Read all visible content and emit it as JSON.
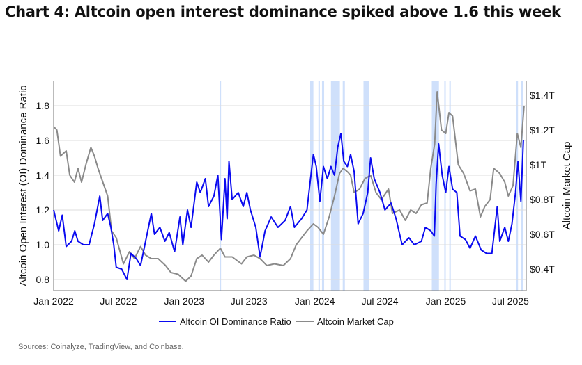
{
  "title": "Chart 4: Altcoin open interest dominance spiked above 1.6 this week",
  "source": "Sources: Coinalyze, TradingView, and Coinbase.",
  "chart_data": {
    "type": "line",
    "ylabel": "Altcoin Open Interest (OI) Dominance Ratio",
    "y2label": "Altcoin Market Cap",
    "ylim": [
      0.736,
      1.944
    ],
    "y2lim": [
      0.276,
      1.484
    ],
    "xlim": [
      "2022-01-01",
      "2025-08-14"
    ],
    "grid": true,
    "legend_position": "bottom",
    "x_ticks": [
      {
        "date": "2022-01-01",
        "label": "Jan 2022"
      },
      {
        "date": "2022-07-01",
        "label": "Jul 2022"
      },
      {
        "date": "2023-01-01",
        "label": "Jan 2023"
      },
      {
        "date": "2023-07-01",
        "label": "Jul 2023"
      },
      {
        "date": "2024-01-01",
        "label": "Jan 2024"
      },
      {
        "date": "2024-07-01",
        "label": "Jul 2024"
      },
      {
        "date": "2025-01-01",
        "label": "Jan 2025"
      },
      {
        "date": "2025-07-01",
        "label": "Jul 2025"
      }
    ],
    "y_ticks": [
      {
        "v": 0.8,
        "label": "0.8"
      },
      {
        "v": 1.0,
        "label": "1.0"
      },
      {
        "v": 1.2,
        "label": "1.2"
      },
      {
        "v": 1.4,
        "label": "1.4"
      },
      {
        "v": 1.6,
        "label": "1.6"
      },
      {
        "v": 1.8,
        "label": "1.8"
      }
    ],
    "y2_ticks": [
      {
        "v": 0.4,
        "label": "$0.4T"
      },
      {
        "v": 0.6,
        "label": "$0.6T"
      },
      {
        "v": 0.8,
        "label": "$0.8T"
      },
      {
        "v": 1.0,
        "label": "$1T"
      },
      {
        "v": 1.2,
        "label": "$1.2T"
      },
      {
        "v": 1.4,
        "label": "$1.4T"
      }
    ],
    "highlight_periods": [
      [
        "2023-04-11",
        "2023-04-13"
      ],
      [
        "2023-12-19",
        "2023-12-28"
      ],
      [
        "2024-01-11",
        "2024-01-15"
      ],
      [
        "2024-01-21",
        "2024-01-27"
      ],
      [
        "2024-02-15",
        "2024-03-11"
      ],
      [
        "2024-03-19",
        "2024-03-25"
      ],
      [
        "2024-05-16",
        "2024-06-01"
      ],
      [
        "2024-11-23",
        "2024-12-13"
      ],
      [
        "2024-12-28",
        "2025-01-01"
      ],
      [
        "2025-01-11",
        "2025-01-15"
      ],
      [
        "2025-07-16",
        "2025-07-22"
      ],
      [
        "2025-07-30",
        "2025-08-06"
      ]
    ],
    "highlight_color": "#cfe0fb",
    "series": [
      {
        "name": "Altcoin OI Dominance Ratio",
        "axis": "left",
        "color": "#0a0af0",
        "points": [
          [
            "2022-01-01",
            1.2
          ],
          [
            "2022-01-15",
            1.08
          ],
          [
            "2022-01-25",
            1.17
          ],
          [
            "2022-02-05",
            0.99
          ],
          [
            "2022-02-20",
            1.02
          ],
          [
            "2022-03-01",
            1.08
          ],
          [
            "2022-03-10",
            1.02
          ],
          [
            "2022-03-25",
            1.0
          ],
          [
            "2022-04-10",
            1.0
          ],
          [
            "2022-04-25",
            1.12
          ],
          [
            "2022-05-10",
            1.28
          ],
          [
            "2022-05-18",
            1.14
          ],
          [
            "2022-06-01",
            1.18
          ],
          [
            "2022-06-10",
            1.1
          ],
          [
            "2022-06-18",
            1.0
          ],
          [
            "2022-06-25",
            0.87
          ],
          [
            "2022-07-10",
            0.86
          ],
          [
            "2022-07-25",
            0.8
          ],
          [
            "2022-08-05",
            0.95
          ],
          [
            "2022-08-20",
            0.92
          ],
          [
            "2022-09-01",
            0.88
          ],
          [
            "2022-09-15",
            1.02
          ],
          [
            "2022-10-01",
            1.18
          ],
          [
            "2022-10-10",
            1.06
          ],
          [
            "2022-10-25",
            1.1
          ],
          [
            "2022-11-08",
            1.02
          ],
          [
            "2022-11-20",
            1.07
          ],
          [
            "2022-12-05",
            0.96
          ],
          [
            "2022-12-20",
            1.16
          ],
          [
            "2022-12-28",
            1.0
          ],
          [
            "2023-01-10",
            1.2
          ],
          [
            "2023-01-20",
            1.1
          ],
          [
            "2023-02-05",
            1.36
          ],
          [
            "2023-02-15",
            1.3
          ],
          [
            "2023-03-01",
            1.38
          ],
          [
            "2023-03-10",
            1.22
          ],
          [
            "2023-03-25",
            1.28
          ],
          [
            "2023-04-05",
            1.4
          ],
          [
            "2023-04-15",
            1.03
          ],
          [
            "2023-04-25",
            1.38
          ],
          [
            "2023-05-01",
            1.15
          ],
          [
            "2023-05-06",
            1.48
          ],
          [
            "2023-05-15",
            1.26
          ],
          [
            "2023-06-01",
            1.3
          ],
          [
            "2023-06-15",
            1.22
          ],
          [
            "2023-06-25",
            1.3
          ],
          [
            "2023-07-05",
            1.2
          ],
          [
            "2023-07-20",
            1.1
          ],
          [
            "2023-08-01",
            0.93
          ],
          [
            "2023-08-15",
            1.08
          ],
          [
            "2023-09-01",
            1.16
          ],
          [
            "2023-09-20",
            1.1
          ],
          [
            "2023-10-10",
            1.14
          ],
          [
            "2023-10-25",
            1.22
          ],
          [
            "2023-11-05",
            1.1
          ],
          [
            "2023-11-25",
            1.15
          ],
          [
            "2023-12-10",
            1.2
          ],
          [
            "2023-12-20",
            1.38
          ],
          [
            "2023-12-28",
            1.52
          ],
          [
            "2024-01-05",
            1.45
          ],
          [
            "2024-01-15",
            1.25
          ],
          [
            "2024-01-25",
            1.45
          ],
          [
            "2024-02-05",
            1.38
          ],
          [
            "2024-02-15",
            1.45
          ],
          [
            "2024-02-25",
            1.4
          ],
          [
            "2024-03-05",
            1.56
          ],
          [
            "2024-03-14",
            1.64
          ],
          [
            "2024-03-22",
            1.48
          ],
          [
            "2024-04-01",
            1.45
          ],
          [
            "2024-04-10",
            1.52
          ],
          [
            "2024-04-20",
            1.42
          ],
          [
            "2024-05-01",
            1.12
          ],
          [
            "2024-05-15",
            1.18
          ],
          [
            "2024-05-28",
            1.3
          ],
          [
            "2024-06-05",
            1.5
          ],
          [
            "2024-06-15",
            1.38
          ],
          [
            "2024-07-01",
            1.3
          ],
          [
            "2024-07-15",
            1.2
          ],
          [
            "2024-08-01",
            1.24
          ],
          [
            "2024-08-15",
            1.15
          ],
          [
            "2024-09-01",
            1.0
          ],
          [
            "2024-09-20",
            1.04
          ],
          [
            "2024-10-05",
            1.0
          ],
          [
            "2024-10-25",
            1.02
          ],
          [
            "2024-11-05",
            1.1
          ],
          [
            "2024-11-20",
            1.08
          ],
          [
            "2024-11-30",
            1.05
          ],
          [
            "2024-12-05",
            1.35
          ],
          [
            "2024-12-12",
            1.58
          ],
          [
            "2024-12-22",
            1.4
          ],
          [
            "2025-01-01",
            1.3
          ],
          [
            "2025-01-10",
            1.45
          ],
          [
            "2025-01-20",
            1.32
          ],
          [
            "2025-02-01",
            1.3
          ],
          [
            "2025-02-10",
            1.05
          ],
          [
            "2025-02-25",
            1.03
          ],
          [
            "2025-03-10",
            0.98
          ],
          [
            "2025-03-25",
            1.05
          ],
          [
            "2025-04-10",
            0.97
          ],
          [
            "2025-04-25",
            0.95
          ],
          [
            "2025-05-10",
            0.95
          ],
          [
            "2025-05-25",
            1.22
          ],
          [
            "2025-06-01",
            1.02
          ],
          [
            "2025-06-15",
            1.1
          ],
          [
            "2025-06-25",
            1.02
          ],
          [
            "2025-07-05",
            1.12
          ],
          [
            "2025-07-15",
            1.3
          ],
          [
            "2025-07-22",
            1.48
          ],
          [
            "2025-07-30",
            1.25
          ],
          [
            "2025-08-06",
            1.6
          ]
        ]
      },
      {
        "name": "Altcoin Market Cap",
        "axis": "right",
        "color": "#8a8a8a",
        "points": [
          [
            "2022-01-01",
            1.22
          ],
          [
            "2022-01-10",
            1.2
          ],
          [
            "2022-01-20",
            1.05
          ],
          [
            "2022-02-05",
            1.08
          ],
          [
            "2022-02-15",
            0.94
          ],
          [
            "2022-02-28",
            0.9
          ],
          [
            "2022-03-10",
            0.98
          ],
          [
            "2022-03-20",
            0.9
          ],
          [
            "2022-04-01",
            1.0
          ],
          [
            "2022-04-15",
            1.1
          ],
          [
            "2022-04-25",
            1.05
          ],
          [
            "2022-05-05",
            0.98
          ],
          [
            "2022-05-15",
            0.92
          ],
          [
            "2022-06-01",
            0.82
          ],
          [
            "2022-06-12",
            0.62
          ],
          [
            "2022-06-25",
            0.58
          ],
          [
            "2022-07-15",
            0.43
          ],
          [
            "2022-08-01",
            0.5
          ],
          [
            "2022-08-15",
            0.46
          ],
          [
            "2022-09-01",
            0.53
          ],
          [
            "2022-09-15",
            0.48
          ],
          [
            "2022-10-01",
            0.46
          ],
          [
            "2022-10-20",
            0.46
          ],
          [
            "2022-11-10",
            0.42
          ],
          [
            "2022-11-25",
            0.38
          ],
          [
            "2022-12-15",
            0.37
          ],
          [
            "2023-01-05",
            0.33
          ],
          [
            "2023-01-20",
            0.36
          ],
          [
            "2023-02-05",
            0.46
          ],
          [
            "2023-02-20",
            0.48
          ],
          [
            "2023-03-10",
            0.44
          ],
          [
            "2023-03-25",
            0.48
          ],
          [
            "2023-04-12",
            0.52
          ],
          [
            "2023-04-25",
            0.47
          ],
          [
            "2023-05-15",
            0.47
          ],
          [
            "2023-06-10",
            0.43
          ],
          [
            "2023-06-25",
            0.47
          ],
          [
            "2023-07-15",
            0.48
          ],
          [
            "2023-08-01",
            0.46
          ],
          [
            "2023-08-20",
            0.42
          ],
          [
            "2023-09-10",
            0.43
          ],
          [
            "2023-10-05",
            0.42
          ],
          [
            "2023-10-25",
            0.46
          ],
          [
            "2023-11-10",
            0.54
          ],
          [
            "2023-11-25",
            0.58
          ],
          [
            "2023-12-10",
            0.62
          ],
          [
            "2023-12-28",
            0.66
          ],
          [
            "2024-01-10",
            0.64
          ],
          [
            "2024-01-25",
            0.6
          ],
          [
            "2024-02-10",
            0.7
          ],
          [
            "2024-02-25",
            0.82
          ],
          [
            "2024-03-10",
            0.95
          ],
          [
            "2024-03-20",
            0.98
          ],
          [
            "2024-04-01",
            0.96
          ],
          [
            "2024-04-10",
            0.94
          ],
          [
            "2024-04-20",
            0.84
          ],
          [
            "2024-05-05",
            0.86
          ],
          [
            "2024-05-20",
            0.92
          ],
          [
            "2024-06-05",
            0.94
          ],
          [
            "2024-06-20",
            0.84
          ],
          [
            "2024-07-05",
            0.8
          ],
          [
            "2024-07-25",
            0.86
          ],
          [
            "2024-08-05",
            0.72
          ],
          [
            "2024-08-25",
            0.74
          ],
          [
            "2024-09-10",
            0.68
          ],
          [
            "2024-09-25",
            0.74
          ],
          [
            "2024-10-10",
            0.72
          ],
          [
            "2024-10-25",
            0.77
          ],
          [
            "2024-11-10",
            0.78
          ],
          [
            "2024-11-20",
            0.98
          ],
          [
            "2024-12-01",
            1.12
          ],
          [
            "2024-12-08",
            1.42
          ],
          [
            "2024-12-20",
            1.2
          ],
          [
            "2025-01-01",
            1.18
          ],
          [
            "2025-01-10",
            1.3
          ],
          [
            "2025-01-20",
            1.28
          ],
          [
            "2025-02-05",
            1.0
          ],
          [
            "2025-02-20",
            0.95
          ],
          [
            "2025-03-10",
            0.85
          ],
          [
            "2025-03-25",
            0.86
          ],
          [
            "2025-04-08",
            0.7
          ],
          [
            "2025-04-20",
            0.76
          ],
          [
            "2025-05-05",
            0.8
          ],
          [
            "2025-05-15",
            0.98
          ],
          [
            "2025-06-01",
            0.95
          ],
          [
            "2025-06-15",
            0.9
          ],
          [
            "2025-06-25",
            0.82
          ],
          [
            "2025-07-08",
            0.88
          ],
          [
            "2025-07-20",
            1.18
          ],
          [
            "2025-07-30",
            1.1
          ],
          [
            "2025-08-08",
            1.34
          ]
        ]
      }
    ]
  }
}
